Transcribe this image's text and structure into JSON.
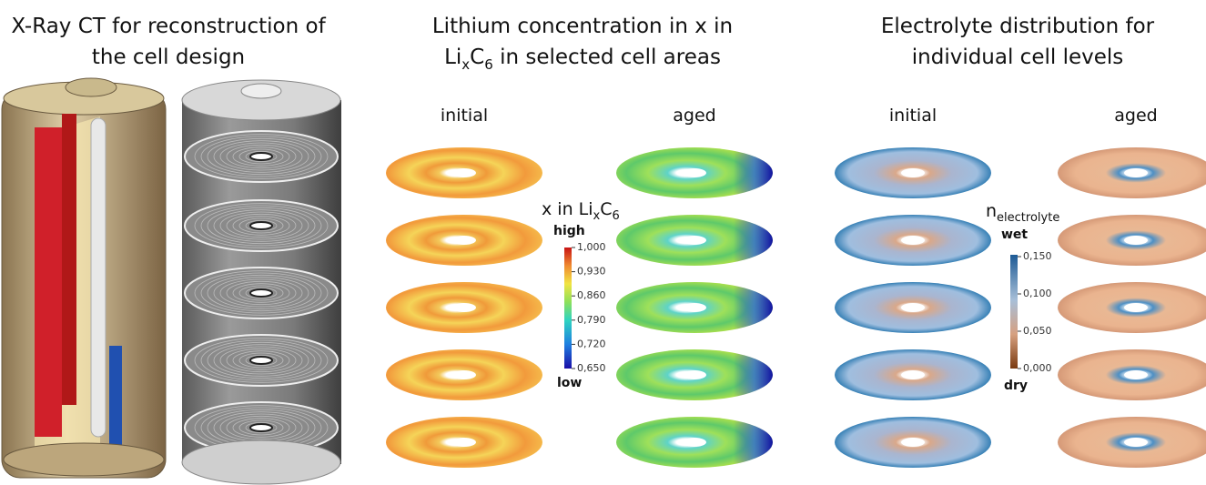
{
  "panels": [
    {
      "title": [
        "X-Ray CT for reconstruction of",
        "the cell design"
      ]
    },
    {
      "title_line1": "Lithium concentration in x in",
      "title_line2": [
        "Li",
        "x",
        "C",
        "6",
        " in selected cell areas"
      ],
      "columns": [
        "initial",
        "aged"
      ],
      "colorbar": {
        "label": [
          "x in Li",
          "x",
          "C",
          "6"
        ],
        "high": "high",
        "low": "low",
        "ticks": [
          "1,000",
          "0,930",
          "0,860",
          "0,790",
          "0,720",
          "0,650"
        ]
      }
    },
    {
      "title": [
        "Electrolyte distribution for",
        "individual cell levels"
      ],
      "columns": [
        "initial",
        "aged"
      ],
      "colorbar": {
        "label": [
          "n",
          "electrolyte"
        ],
        "high": "wet",
        "low": "dry",
        "ticks": [
          "0,150",
          "0,100",
          "0,050",
          "0,000"
        ]
      }
    }
  ]
}
